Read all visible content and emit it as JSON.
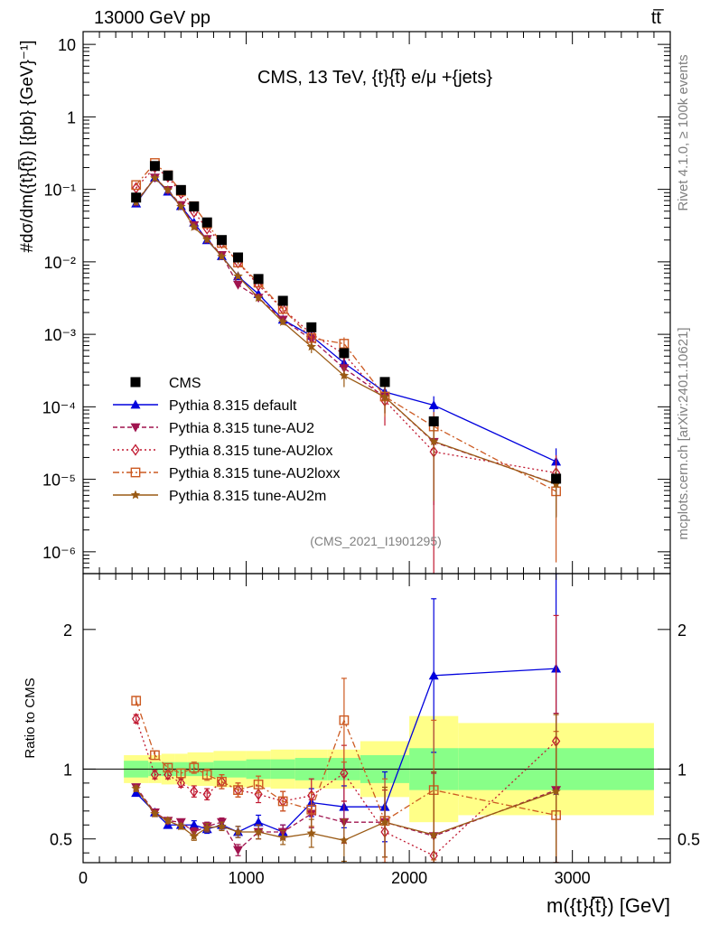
{
  "header": {
    "left": "13000 GeV pp",
    "right": "tt̅"
  },
  "side_labels": {
    "rivet": "Rivet 4.1.0, ≥ 100k events",
    "mcplots": "mcplots.cern.ch [arXiv:2401.10621]"
  },
  "chart_data": {
    "type": "line",
    "title": "CMS, 13 TeV, {t}{t̅} e/μ +{jets}",
    "watermark": "(CMS_2021_I1901295)",
    "xlabel": "m({t}{t̅}) [GeV]",
    "ylabel": "#dσ/dm({t}{t̅}) [{pb} {GeV}⁻¹]",
    "ratio_ylabel": "Ratio to CMS",
    "xlim": [
      0,
      3600
    ],
    "ylim": [
      5e-07,
      15
    ],
    "ratio_ylim": [
      0.33,
      2.4
    ],
    "x_ticks": [
      "0",
      "1000",
      "2000",
      "3000"
    ],
    "y_ticks": [
      "10⁻⁶",
      "10⁻⁵",
      "10⁻⁴",
      "10⁻³",
      "10⁻²",
      "10⁻¹",
      "1",
      "10"
    ],
    "ratio_ticks": [
      "0.5",
      "1",
      "2"
    ],
    "bins": [
      [
        250,
        400
      ],
      [
        400,
        480
      ],
      [
        480,
        560
      ],
      [
        560,
        640
      ],
      [
        640,
        720
      ],
      [
        720,
        800
      ],
      [
        800,
        900
      ],
      [
        900,
        1000
      ],
      [
        1000,
        1150
      ],
      [
        1150,
        1300
      ],
      [
        1300,
        1500
      ],
      [
        1500,
        1700
      ],
      [
        1700,
        2000
      ],
      [
        2000,
        2300
      ],
      [
        2300,
        3500
      ]
    ],
    "x": [
      325,
      440,
      520,
      600,
      680,
      760,
      850,
      950,
      1075,
      1225,
      1400,
      1600,
      1850,
      2150,
      2900
    ],
    "data": {
      "name": "CMS",
      "values": [
        0.077,
        0.21,
        0.155,
        0.098,
        0.058,
        0.035,
        0.02,
        0.0115,
        0.0058,
        0.0029,
        0.00125,
        0.00055,
        0.00022,
        6.3e-05,
        1.02e-05
      ],
      "band_stat": [
        0.06,
        0.05,
        0.05,
        0.05,
        0.05,
        0.05,
        0.06,
        0.06,
        0.07,
        0.07,
        0.08,
        0.08,
        0.1,
        0.15,
        0.15
      ],
      "band_total": [
        0.1,
        0.1,
        0.11,
        0.11,
        0.12,
        0.12,
        0.13,
        0.13,
        0.13,
        0.14,
        0.14,
        0.14,
        0.2,
        0.38,
        0.33
      ]
    },
    "series": [
      {
        "name": "Pythia 8.315 default",
        "color": "#0000dd",
        "dash": "",
        "marker": "triangle-up",
        "ratio": [
          0.83,
          0.69,
          0.6,
          0.6,
          0.6,
          0.57,
          0.6,
          0.55,
          0.62,
          0.55,
          0.76,
          0.73,
          0.73,
          1.67,
          1.72
        ],
        "ratio_err": [
          0.02,
          0.02,
          0.02,
          0.02,
          0.03,
          0.03,
          0.03,
          0.04,
          0.05,
          0.05,
          0.1,
          0.15,
          0.25,
          0.55,
          0.9
        ]
      },
      {
        "name": "Pythia 8.315 tune-AU2",
        "color": "#a0144f",
        "dash": "5,3",
        "marker": "triangle-down",
        "ratio": [
          0.87,
          0.69,
          0.63,
          0.62,
          0.55,
          0.59,
          0.62,
          0.42,
          0.55,
          0.55,
          0.68,
          0.62,
          0.62,
          0.52,
          0.85
        ],
        "ratio_err": [
          0.02,
          0.02,
          0.02,
          0.02,
          0.03,
          0.03,
          0.03,
          0.04,
          0.05,
          0.05,
          0.1,
          0.15,
          0.25,
          0.45,
          0.55
        ]
      },
      {
        "name": "Pythia 8.315 tune-AU2lox",
        "color": "#c01830",
        "dash": "2,3",
        "marker": "diamond",
        "ratio": [
          1.36,
          0.96,
          0.96,
          0.9,
          0.84,
          0.82,
          0.91,
          0.85,
          0.82,
          0.77,
          0.81,
          0.97,
          0.55,
          0.38,
          1.2
        ],
        "ratio_err": [
          0.03,
          0.03,
          0.03,
          0.03,
          0.04,
          0.04,
          0.05,
          0.05,
          0.06,
          0.07,
          0.12,
          0.2,
          0.3,
          0.6,
          0.9
        ]
      },
      {
        "name": "Pythia 8.315 tune-AU2loxx",
        "color": "#cc5a22",
        "dash": "7,3,2,3",
        "marker": "square",
        "ratio": [
          1.49,
          1.1,
          1.01,
          0.97,
          1.01,
          0.96,
          0.91,
          0.85,
          0.89,
          0.77,
          0.71,
          1.35,
          0.63,
          0.85,
          0.67
        ],
        "ratio_err": [
          0.03,
          0.03,
          0.03,
          0.03,
          0.04,
          0.04,
          0.05,
          0.05,
          0.06,
          0.07,
          0.12,
          0.3,
          0.3,
          0.5,
          0.6
        ]
      },
      {
        "name": "Pythia 8.315 tune-AU2m",
        "color": "#9a5a14",
        "dash": "",
        "marker": "star",
        "ratio": [
          0.86,
          0.68,
          0.63,
          0.59,
          0.52,
          0.58,
          0.59,
          0.55,
          0.55,
          0.51,
          0.54,
          0.49,
          0.62,
          0.53,
          0.84
        ],
        "ratio_err": [
          0.02,
          0.02,
          0.02,
          0.02,
          0.03,
          0.03,
          0.03,
          0.04,
          0.05,
          0.05,
          0.1,
          0.15,
          0.25,
          0.45,
          0.55
        ]
      }
    ]
  }
}
